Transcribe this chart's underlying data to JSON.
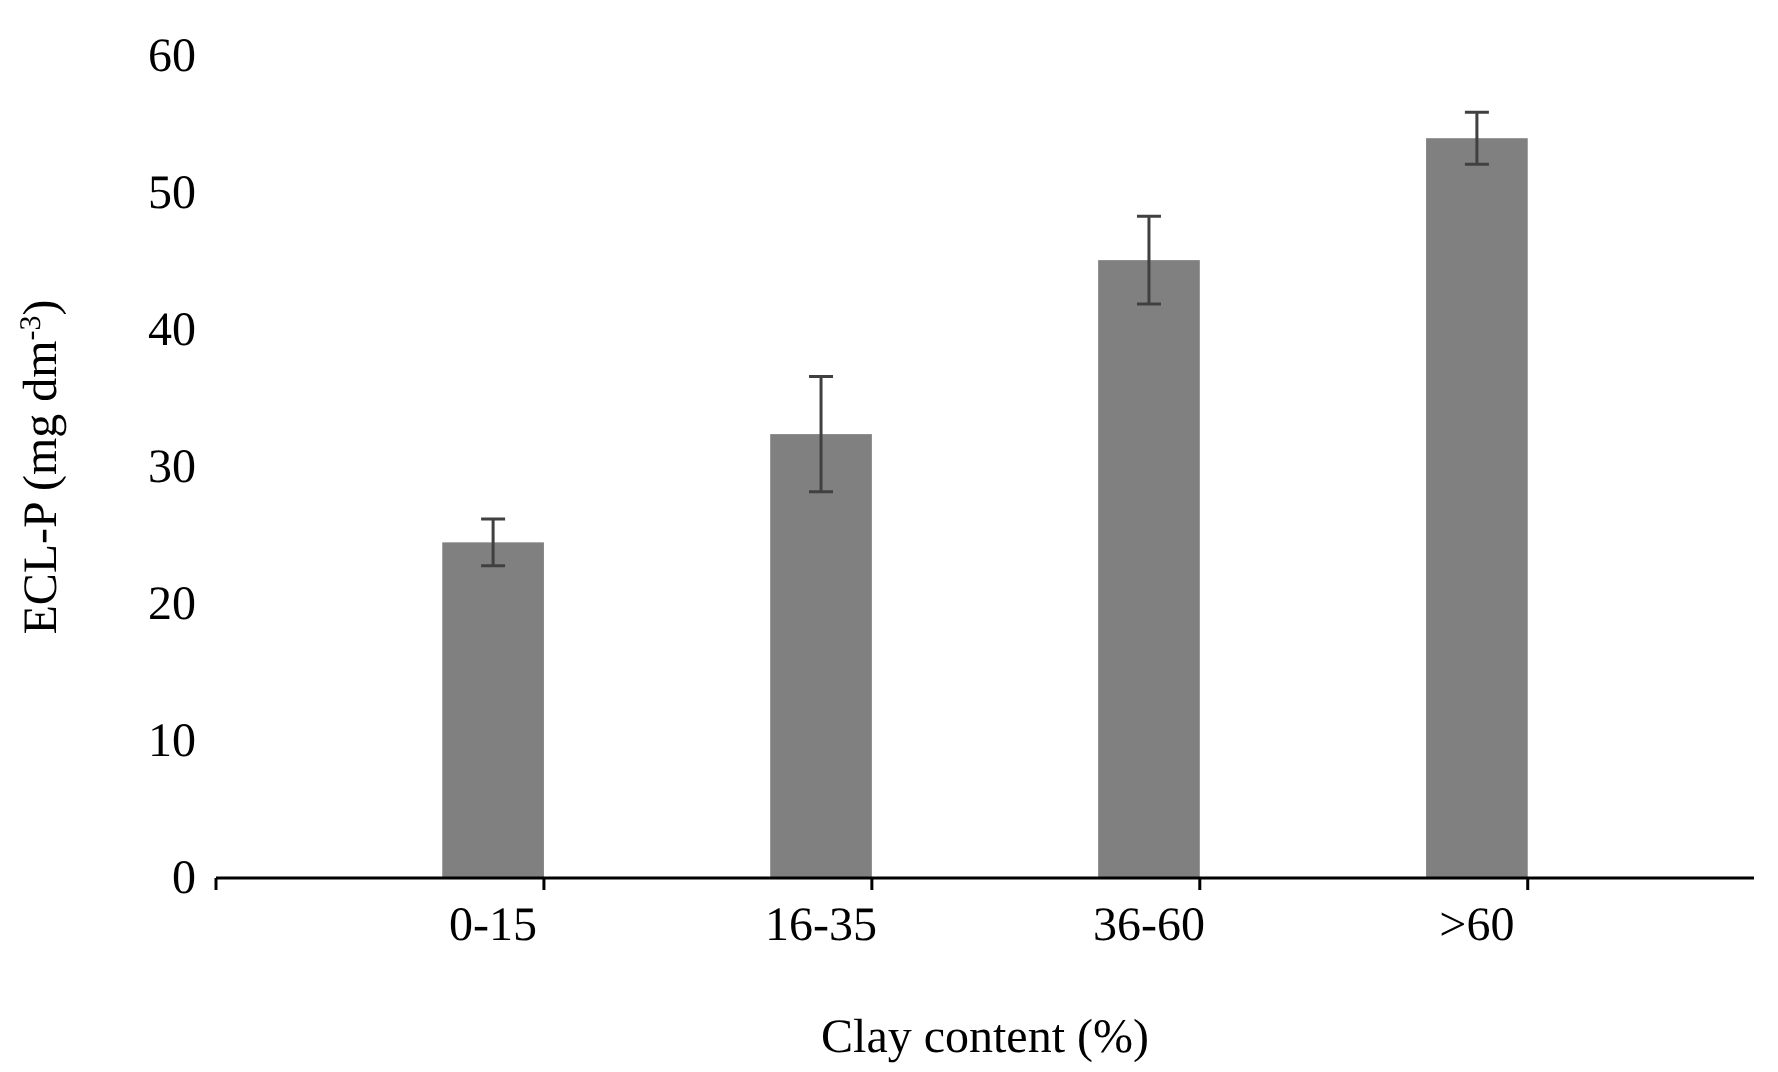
{
  "chart_data": {
    "type": "bar",
    "xlabel": "Clay content (%)",
    "ylabel": "ECL-P (mg dm$^{-3}$)",
    "categories": [
      "0-15",
      "16-35",
      "36-60",
      ">60"
    ],
    "values": [
      24.5,
      32.4,
      45.1,
      54.0
    ],
    "errors": [
      1.7,
      4.2,
      3.2,
      1.9
    ],
    "color": "#808080",
    "ylim": [
      0,
      60
    ],
    "yticks": [
      0,
      10,
      20,
      30,
      40,
      50,
      60
    ],
    "grid": false
  }
}
